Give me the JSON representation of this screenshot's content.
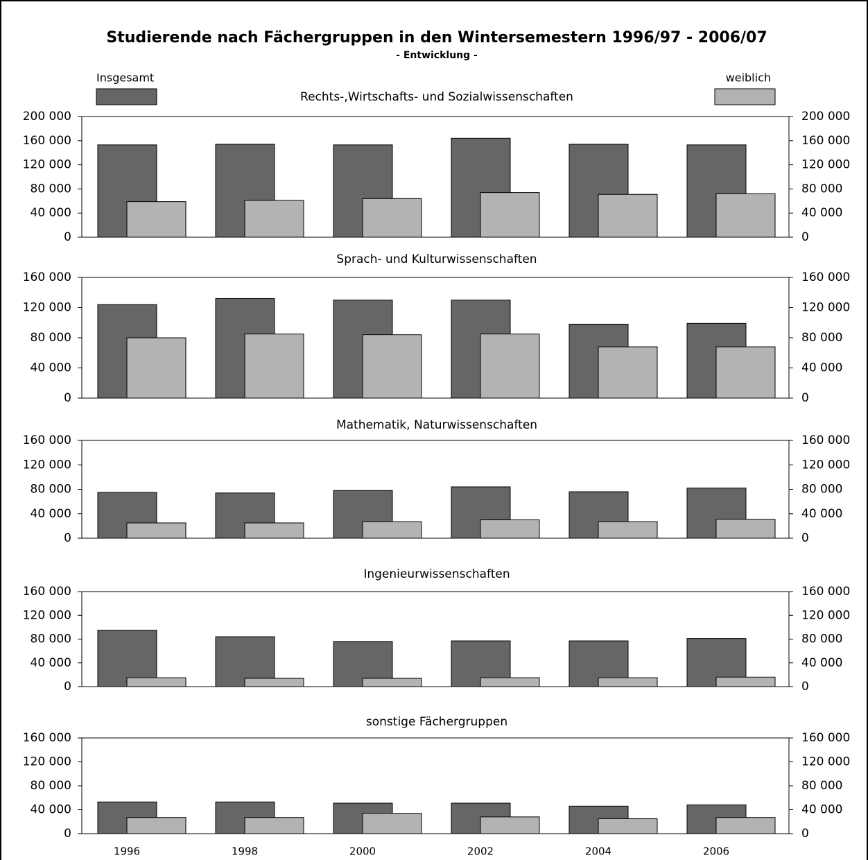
{
  "title": "Studierende nach Fächergruppen in den Wintersemestern 1996/97 - 2006/07",
  "subtitle": "- Entwicklung -",
  "chart_data": [
    {
      "type": "bar",
      "title": "Rechts-,Wirtschafts- und Sozialwissenschaften",
      "series": [
        {
          "name": "Insgesamt",
          "color": "#666666",
          "values": [
            153000,
            154000,
            153000,
            164000,
            154000,
            153000
          ]
        },
        {
          "name": "weiblich",
          "color": "#b3b3b3",
          "values": [
            59000,
            61000,
            64000,
            74000,
            71000,
            72000
          ]
        }
      ],
      "ylim": [
        0,
        200000
      ],
      "yticks": [
        0,
        {
          "value": 40000,
          "label": "40 000"
        },
        {
          "value": 80000,
          "label": "80 000"
        },
        {
          "value": 120000,
          "label": "120 000"
        },
        {
          "value": 160000,
          "label": "160 000"
        },
        {
          "value": 200000,
          "label": "200 000"
        }
      ]
    },
    {
      "type": "bar",
      "title": "Sprach- und Kulturwissenschaften",
      "series": [
        {
          "color": "#666666",
          "values": [
            124000,
            132000,
            130000,
            130000,
            98000,
            99000
          ]
        },
        {
          "color": "#b3b3b3",
          "values": [
            80000,
            85000,
            84000,
            85000,
            68000,
            68000
          ]
        }
      ],
      "ylim": [
        0,
        160000
      ],
      "yticks": [
        0,
        {
          "value": 40000,
          "label": "40 000"
        },
        {
          "value": 80000,
          "label": "80 000"
        },
        {
          "value": 120000,
          "label": "120 000"
        },
        {
          "value": 160000,
          "label": "160 000"
        }
      ]
    },
    {
      "type": "bar",
      "title": "Mathematik, Naturwissenschaften",
      "series": [
        {
          "color": "#666666",
          "values": [
            75000,
            74000,
            78000,
            84000,
            76000,
            82000
          ]
        },
        {
          "color": "#b3b3b3",
          "values": [
            25000,
            25000,
            27000,
            30000,
            27000,
            31000
          ]
        }
      ],
      "ylim": [
        0,
        160000
      ],
      "yticks": [
        0,
        {
          "value": 40000,
          "label": "40 000"
        },
        {
          "value": 80000,
          "label": "80 000"
        },
        {
          "value": 120000,
          "label": "120 000"
        },
        {
          "value": 160000,
          "label": "160 000"
        }
      ]
    },
    {
      "type": "bar",
      "title": "Ingenieurwissenschaften",
      "series": [
        {
          "color": "#666666",
          "values": [
            95000,
            84000,
            76000,
            77000,
            77000,
            81000
          ]
        },
        {
          "color": "#b3b3b3",
          "values": [
            15000,
            14000,
            14000,
            15000,
            15000,
            16000
          ]
        }
      ],
      "ylim": [
        0,
        160000
      ],
      "yticks": [
        0,
        {
          "value": 40000,
          "label": "40 000"
        },
        {
          "value": 80000,
          "label": "80 000"
        },
        {
          "value": 120000,
          "label": "120 000"
        },
        {
          "value": 160000,
          "label": "160 000"
        }
      ]
    },
    {
      "type": "bar",
      "title": "sonstige Fächergruppen",
      "categories": [
        "1996",
        "1998",
        "2000",
        "2002",
        "2004",
        "2006"
      ],
      "series": [
        {
          "color": "#666666",
          "values": [
            53000,
            53000,
            51000,
            51000,
            46000,
            48000
          ]
        },
        {
          "color": "#b3b3b3",
          "values": [
            27000,
            27000,
            34000,
            28000,
            25000,
            27000
          ]
        }
      ],
      "ylim": [
        0,
        160000
      ],
      "yticks": [
        0,
        {
          "value": 40000,
          "label": "40 000"
        },
        {
          "value": 80000,
          "label": "80 000"
        },
        {
          "value": 120000,
          "label": "120 000"
        },
        {
          "value": 160000,
          "label": "160 000"
        }
      ]
    }
  ]
}
